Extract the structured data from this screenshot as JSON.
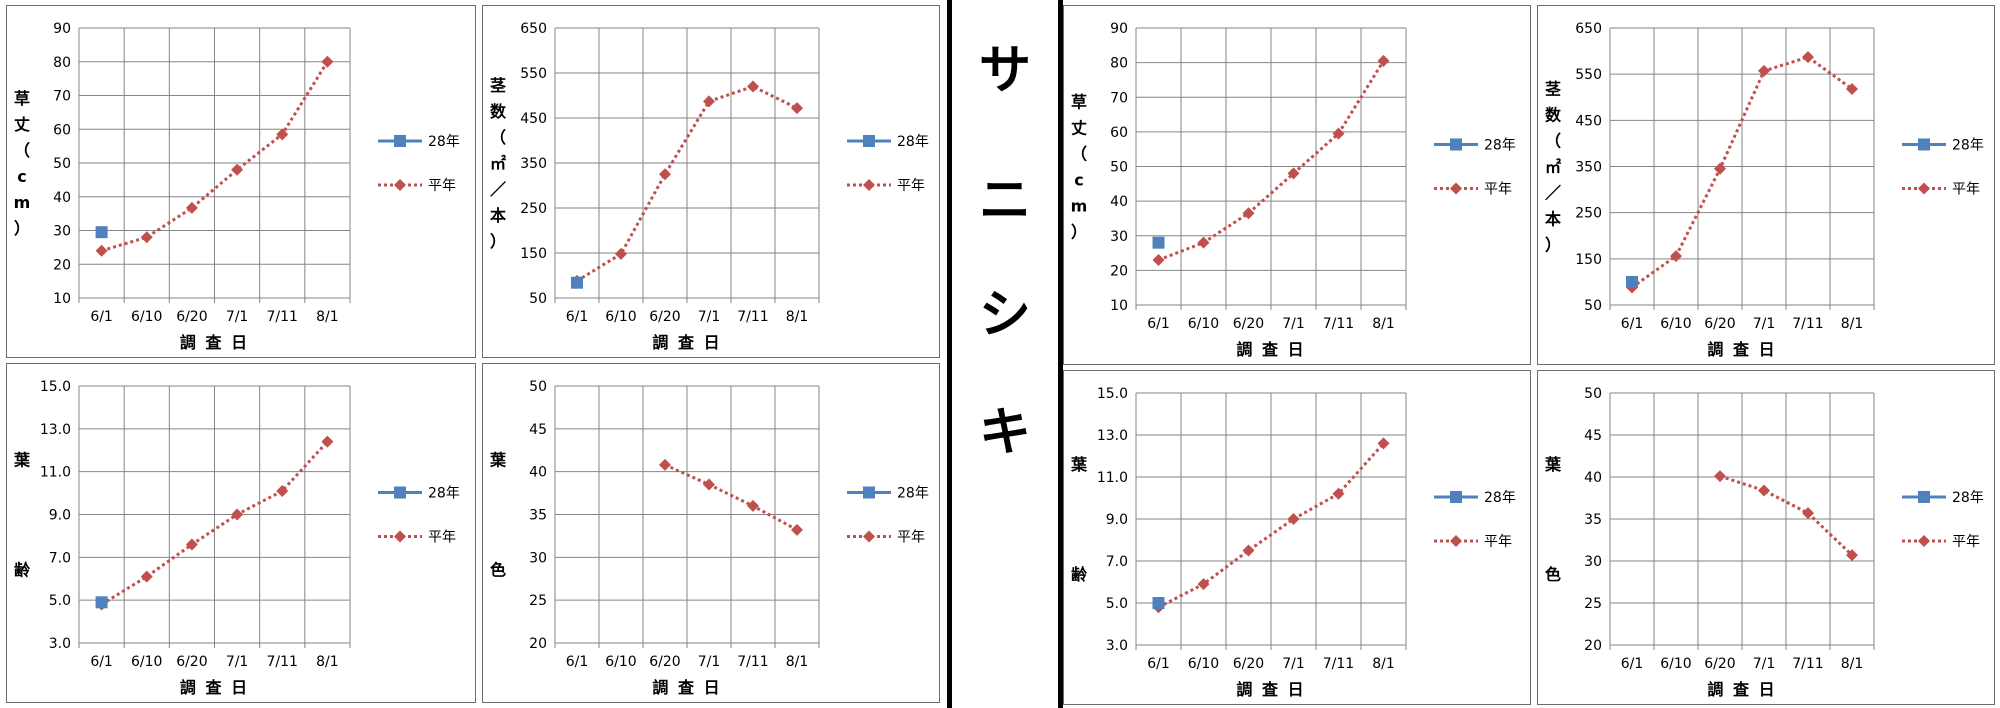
{
  "title": "サニシキ",
  "side_chars": [
    "サ",
    "ニ",
    "シ",
    "キ"
  ],
  "colors": {
    "series_28": "#4f81bd",
    "series_avg": "#c0504d",
    "grid": "#868686"
  },
  "categories": [
    "6/1",
    "6/10",
    "6/20",
    "7/1",
    "7/11",
    "8/1"
  ],
  "chart_data": [
    {
      "type": "line",
      "group": "left",
      "title": "",
      "xlabel": "調 査 日",
      "ylabel_chars": [
        "草",
        "丈",
        "（",
        "c",
        "m",
        "）"
      ],
      "ylim": [
        10,
        90
      ],
      "yticks": [
        10,
        20,
        30,
        40,
        50,
        60,
        70,
        80,
        90
      ],
      "tick_decimals": 0,
      "categories": [
        "6/1",
        "6/10",
        "6/20",
        "7/1",
        "7/11",
        "8/1"
      ],
      "series": [
        {
          "name": "28年",
          "x": [
            "6/1"
          ],
          "values": [
            29.5
          ]
        },
        {
          "name": "平年",
          "x": [
            "6/1",
            "6/10",
            "6/20",
            "7/1",
            "7/11",
            "8/1"
          ],
          "values": [
            24,
            28,
            36.7,
            48,
            58.5,
            80
          ]
        }
      ],
      "legend": "right",
      "grid": true
    },
    {
      "type": "line",
      "group": "left",
      "title": "",
      "xlabel": "調 査 日",
      "ylabel_chars": [
        "茎",
        "数",
        "（",
        "㎡",
        "／",
        "本",
        "）"
      ],
      "ylim": [
        50,
        650
      ],
      "yticks": [
        50,
        150,
        250,
        350,
        450,
        550,
        650
      ],
      "tick_decimals": 0,
      "categories": [
        "6/1",
        "6/10",
        "6/20",
        "7/1",
        "7/11",
        "8/1"
      ],
      "series": [
        {
          "name": "28年",
          "x": [
            "6/1"
          ],
          "values": [
            84
          ]
        },
        {
          "name": "平年",
          "x": [
            "6/1",
            "6/10",
            "6/20",
            "7/1",
            "7/11",
            "8/1"
          ],
          "values": [
            88,
            148,
            325,
            487,
            520,
            472
          ]
        }
      ],
      "legend": "right",
      "grid": true
    },
    {
      "type": "line",
      "group": "left",
      "title": "",
      "xlabel": "調 査 日",
      "ylabel_chars": [
        "葉",
        "齢"
      ],
      "ylim": [
        3,
        15
      ],
      "yticks": [
        3,
        5,
        7,
        9,
        11,
        13,
        15
      ],
      "tick_decimals": 1,
      "categories": [
        "6/1",
        "6/10",
        "6/20",
        "7/1",
        "7/11",
        "8/1"
      ],
      "series": [
        {
          "name": "28年",
          "x": [
            "6/1"
          ],
          "values": [
            4.9
          ]
        },
        {
          "name": "平年",
          "x": [
            "6/1",
            "6/10",
            "6/20",
            "7/1",
            "7/11",
            "8/1"
          ],
          "values": [
            4.8,
            6.1,
            7.6,
            9.0,
            10.1,
            12.4
          ]
        }
      ],
      "legend": "right",
      "grid": true
    },
    {
      "type": "line",
      "group": "left",
      "title": "",
      "xlabel": "調 査 日",
      "ylabel_chars": [
        "葉",
        "色"
      ],
      "ylim": [
        20,
        50
      ],
      "yticks": [
        20,
        25,
        30,
        35,
        40,
        45,
        50
      ],
      "tick_decimals": 0,
      "categories": [
        "6/1",
        "6/10",
        "6/20",
        "7/1",
        "7/11",
        "8/1"
      ],
      "series": [
        {
          "name": "28年",
          "x": [],
          "values": []
        },
        {
          "name": "平年",
          "x": [
            "6/20",
            "7/1",
            "7/11",
            "8/1"
          ],
          "values": [
            40.8,
            38.5,
            36,
            33.2
          ]
        }
      ],
      "legend": "right",
      "grid": true
    },
    {
      "type": "line",
      "group": "right",
      "title": "",
      "xlabel": "調 査 日",
      "ylabel_chars": [
        "草",
        "丈",
        "（",
        "c",
        "m",
        "）"
      ],
      "ylim": [
        10,
        90
      ],
      "yticks": [
        10,
        20,
        30,
        40,
        50,
        60,
        70,
        80,
        90
      ],
      "tick_decimals": 0,
      "categories": [
        "6/1",
        "6/10",
        "6/20",
        "7/1",
        "7/11",
        "8/1"
      ],
      "series": [
        {
          "name": "28年",
          "x": [
            "6/1"
          ],
          "values": [
            28
          ]
        },
        {
          "name": "平年",
          "x": [
            "6/1",
            "6/10",
            "6/20",
            "7/1",
            "7/11",
            "8/1"
          ],
          "values": [
            23,
            28,
            36.5,
            48,
            59.5,
            80.5
          ]
        }
      ],
      "legend": "right",
      "grid": true
    },
    {
      "type": "line",
      "group": "right",
      "title": "",
      "xlabel": "調 査 日",
      "ylabel_chars": [
        "茎",
        "数",
        "（",
        "㎡",
        "／",
        "本",
        "）"
      ],
      "ylim": [
        50,
        650
      ],
      "yticks": [
        50,
        150,
        250,
        350,
        450,
        550,
        650
      ],
      "tick_decimals": 0,
      "categories": [
        "6/1",
        "6/10",
        "6/20",
        "7/1",
        "7/11",
        "8/1"
      ],
      "series": [
        {
          "name": "28年",
          "x": [
            "6/1"
          ],
          "values": [
            100
          ]
        },
        {
          "name": "平年",
          "x": [
            "6/1",
            "6/10",
            "6/20",
            "7/1",
            "7/11",
            "8/1"
          ],
          "values": [
            88,
            156,
            345,
            557,
            587,
            518
          ]
        }
      ],
      "legend": "right",
      "grid": true
    },
    {
      "type": "line",
      "group": "right",
      "title": "",
      "xlabel": "調 査 日",
      "ylabel_chars": [
        "葉",
        "齢"
      ],
      "ylim": [
        3,
        15
      ],
      "yticks": [
        3,
        5,
        7,
        9,
        11,
        13,
        15
      ],
      "tick_decimals": 1,
      "categories": [
        "6/1",
        "6/10",
        "6/20",
        "7/1",
        "7/11",
        "8/1"
      ],
      "series": [
        {
          "name": "28年",
          "x": [
            "6/1"
          ],
          "values": [
            5.0
          ]
        },
        {
          "name": "平年",
          "x": [
            "6/1",
            "6/10",
            "6/20",
            "7/1",
            "7/11",
            "8/1"
          ],
          "values": [
            4.8,
            5.9,
            7.5,
            9.0,
            10.2,
            12.6
          ]
        }
      ],
      "legend": "right",
      "grid": true
    },
    {
      "type": "line",
      "group": "right",
      "title": "",
      "xlabel": "調 査 日",
      "ylabel_chars": [
        "葉",
        "色"
      ],
      "ylim": [
        20,
        50
      ],
      "yticks": [
        20,
        25,
        30,
        35,
        40,
        45,
        50
      ],
      "tick_decimals": 0,
      "categories": [
        "6/1",
        "6/10",
        "6/20",
        "7/1",
        "7/11",
        "8/1"
      ],
      "series": [
        {
          "name": "28年",
          "x": [],
          "values": []
        },
        {
          "name": "平年",
          "x": [
            "6/20",
            "7/1",
            "7/11",
            "8/1"
          ],
          "values": [
            40.1,
            38.4,
            35.7,
            30.7
          ]
        }
      ],
      "legend": "right",
      "grid": true
    }
  ]
}
